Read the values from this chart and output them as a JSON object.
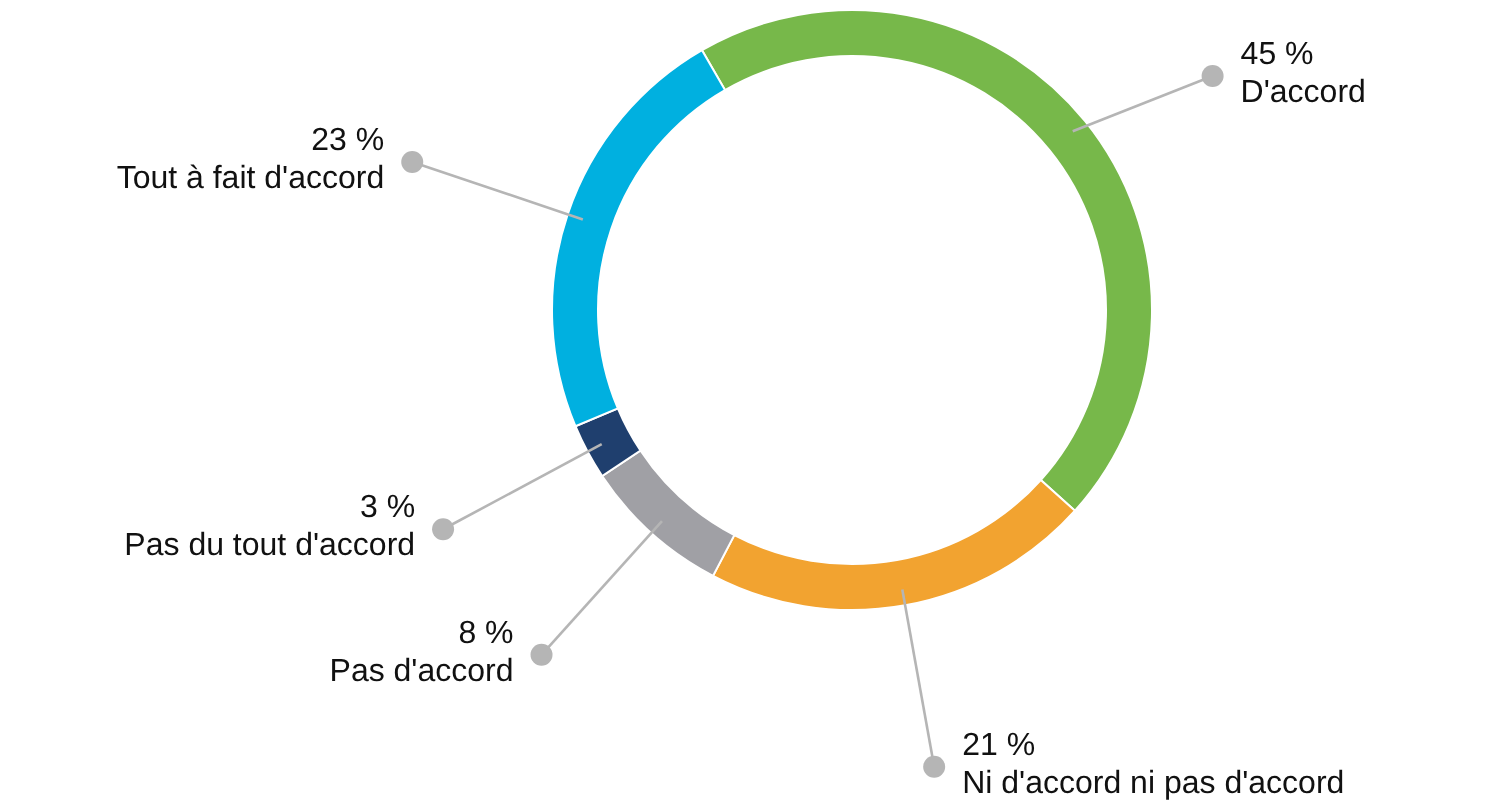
{
  "chart_data": {
    "type": "donut",
    "categories": [
      "D'accord",
      "Ni d'accord ni pas d'accord",
      "Pas d'accord",
      "Pas du tout d'accord",
      "Tout à fait d'accord"
    ],
    "values": [
      45,
      21,
      8,
      3,
      23
    ],
    "value_labels": [
      "45 %",
      "21 %",
      "8 %",
      "3 %",
      "23 %"
    ],
    "colors": [
      "#77b84a",
      "#f2a330",
      "#a0a0a5",
      "#1f3f6e",
      "#00b0e0"
    ]
  }
}
